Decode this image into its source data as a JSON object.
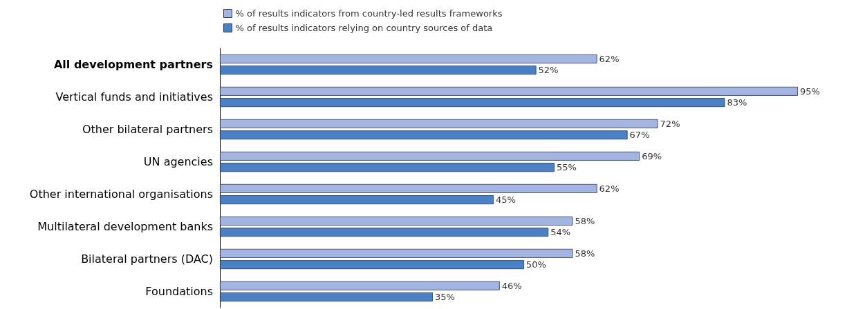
{
  "chart_data": {
    "type": "bar",
    "orientation": "horizontal",
    "categories": [
      "All development partners",
      "Vertical funds and initiatives",
      "Other bilateral partners",
      "UN agencies",
      "Other international organisations",
      "Multilateral development banks",
      "Bilateral partners (DAC)",
      "Foundations"
    ],
    "series": [
      {
        "name": "% of results indicators from country-led results frameworks",
        "color": "#a3b4e0",
        "values": [
          62,
          95,
          72,
          69,
          62,
          58,
          58,
          46
        ],
        "value_labels": [
          "62%",
          "95%",
          "72%",
          "69%",
          "62%",
          "58%",
          "58%",
          "46%"
        ]
      },
      {
        "name": "% of results indicators relying on country sources of data",
        "color": "#4a80c4",
        "values": [
          52,
          83,
          67,
          55,
          45,
          54,
          50,
          35
        ],
        "value_labels": [
          "52%",
          "83%",
          "67%",
          "55%",
          "45%",
          "54%",
          "50%",
          "35%"
        ]
      }
    ],
    "legend": "top"
  }
}
